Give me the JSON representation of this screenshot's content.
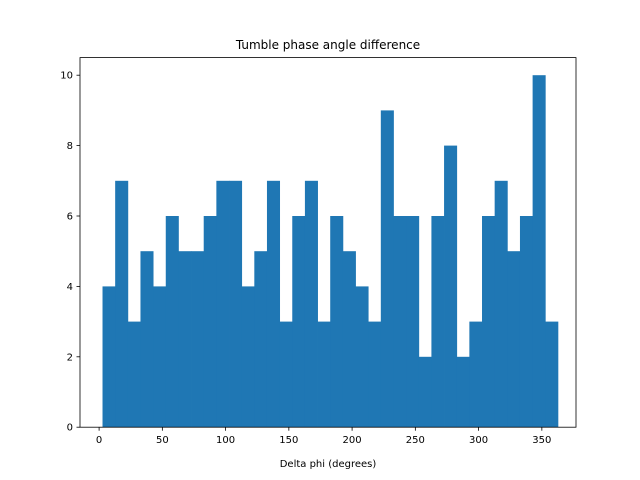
{
  "chart_data": {
    "type": "bar",
    "title": "Tumble phase angle difference",
    "xlabel": "Delta phi (degrees)",
    "ylabel": "",
    "xlim": [
      -15.1,
      377.0
    ],
    "ylim": [
      0,
      10.5
    ],
    "xticks": [
      0,
      50,
      100,
      150,
      200,
      250,
      300,
      350
    ],
    "yticks": [
      0,
      2,
      4,
      6,
      8,
      10
    ],
    "bin_start": 2.7,
    "bin_width": 10.0,
    "values": [
      4,
      7,
      3,
      5,
      4,
      6,
      5,
      5,
      6,
      7,
      7,
      4,
      5,
      7,
      3,
      6,
      7,
      3,
      6,
      5,
      4,
      3,
      9,
      6,
      6,
      2,
      6,
      8,
      2,
      3,
      6,
      7,
      5,
      6,
      10,
      3
    ],
    "color": "#1f77b4",
    "grid": false,
    "legend": "none"
  }
}
